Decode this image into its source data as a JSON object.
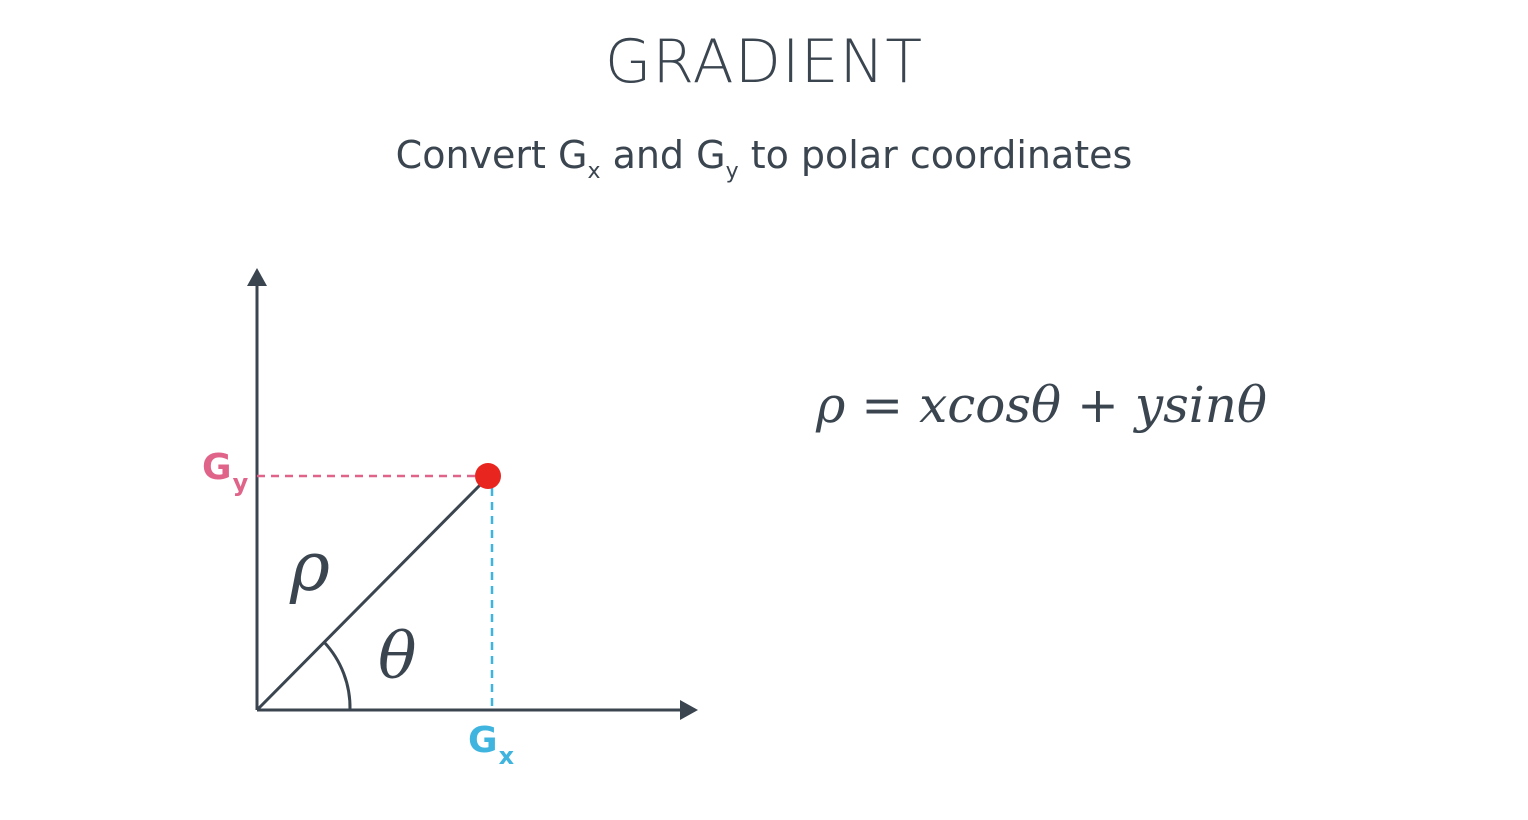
{
  "slide": {
    "title": "GRADIENT",
    "subtitle": {
      "part1": "Convert G",
      "sub1": "x",
      "part2": " and G",
      "sub2": "y",
      "part3": " to polar coordinates"
    },
    "formula": "ρ = xcosθ + ysinθ"
  },
  "diagram": {
    "gy_label": "G",
    "gy_sub": "y",
    "gx_label": "G",
    "gx_sub": "x",
    "rho_label": "ρ",
    "theta_label": "θ",
    "colors": {
      "axis": "#3a4550",
      "gy": "#e0648a",
      "gx": "#3fb4df",
      "point": "#e8251e"
    }
  }
}
